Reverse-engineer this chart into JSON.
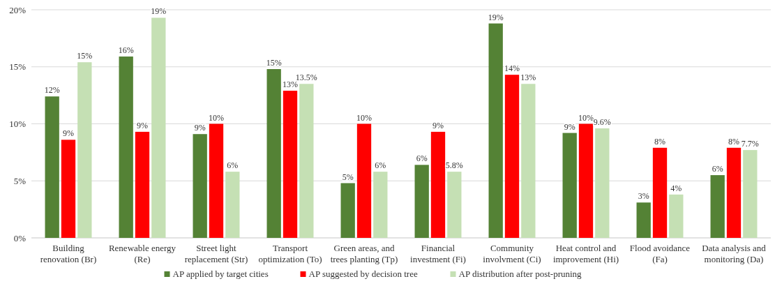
{
  "chart_data": {
    "type": "bar",
    "categories": [
      "Building\nrenovation (Br)",
      "Renewable energy\n(Re)",
      "Street light\nreplacement (Str)",
      "Transport\noptimization (To)",
      "Green areas, and\ntrees planting (Tp)",
      "Financial\ninvestment (Fi)",
      "Community\ninvolvment (Ci)",
      "Heat control and\nimprovement (Hi)",
      "Flood avoidance\n(Fa)",
      "Data analysis and\nmonitoring (Da)"
    ],
    "series": [
      {
        "name": "AP applied by target cities",
        "color": "#548235",
        "values": [
          12.4,
          15.9,
          9.1,
          14.8,
          4.8,
          6.4,
          18.8,
          9.2,
          3.1,
          5.5
        ],
        "value_labels": [
          "12%",
          "16%",
          "9%",
          "15%",
          "5%",
          "6%",
          "19%",
          "9%",
          "3%",
          "6%"
        ]
      },
      {
        "name": "AP suggested by decision tree",
        "color": "#ff0000",
        "values": [
          8.6,
          9.3,
          10,
          12.9,
          10,
          9.3,
          14.3,
          10,
          7.9,
          7.9
        ],
        "value_labels": [
          "9%",
          "9%",
          "10%",
          "13%",
          "10%",
          "9%",
          "14%",
          "10%",
          "8%",
          "8%"
        ]
      },
      {
        "name": "AP distribution after post-pruning",
        "color": "#c5e0b4",
        "values": [
          15.4,
          19.3,
          5.8,
          13.5,
          5.8,
          5.8,
          13.5,
          9.6,
          3.8,
          7.7
        ],
        "value_labels": [
          "15%",
          "19%",
          "6%",
          "13.5%",
          "6%",
          "5.8%",
          "13%",
          "9.6%",
          "4%",
          "7.7%"
        ]
      }
    ],
    "ylim": [
      0,
      20
    ],
    "yticks": [
      {
        "value": 0,
        "label": "0%"
      },
      {
        "value": 5,
        "label": "5%"
      },
      {
        "value": 10,
        "label": "10%"
      },
      {
        "value": 15,
        "label": "15%"
      },
      {
        "value": 20,
        "label": "20%"
      }
    ],
    "grid": "y",
    "legend": "bottom"
  }
}
